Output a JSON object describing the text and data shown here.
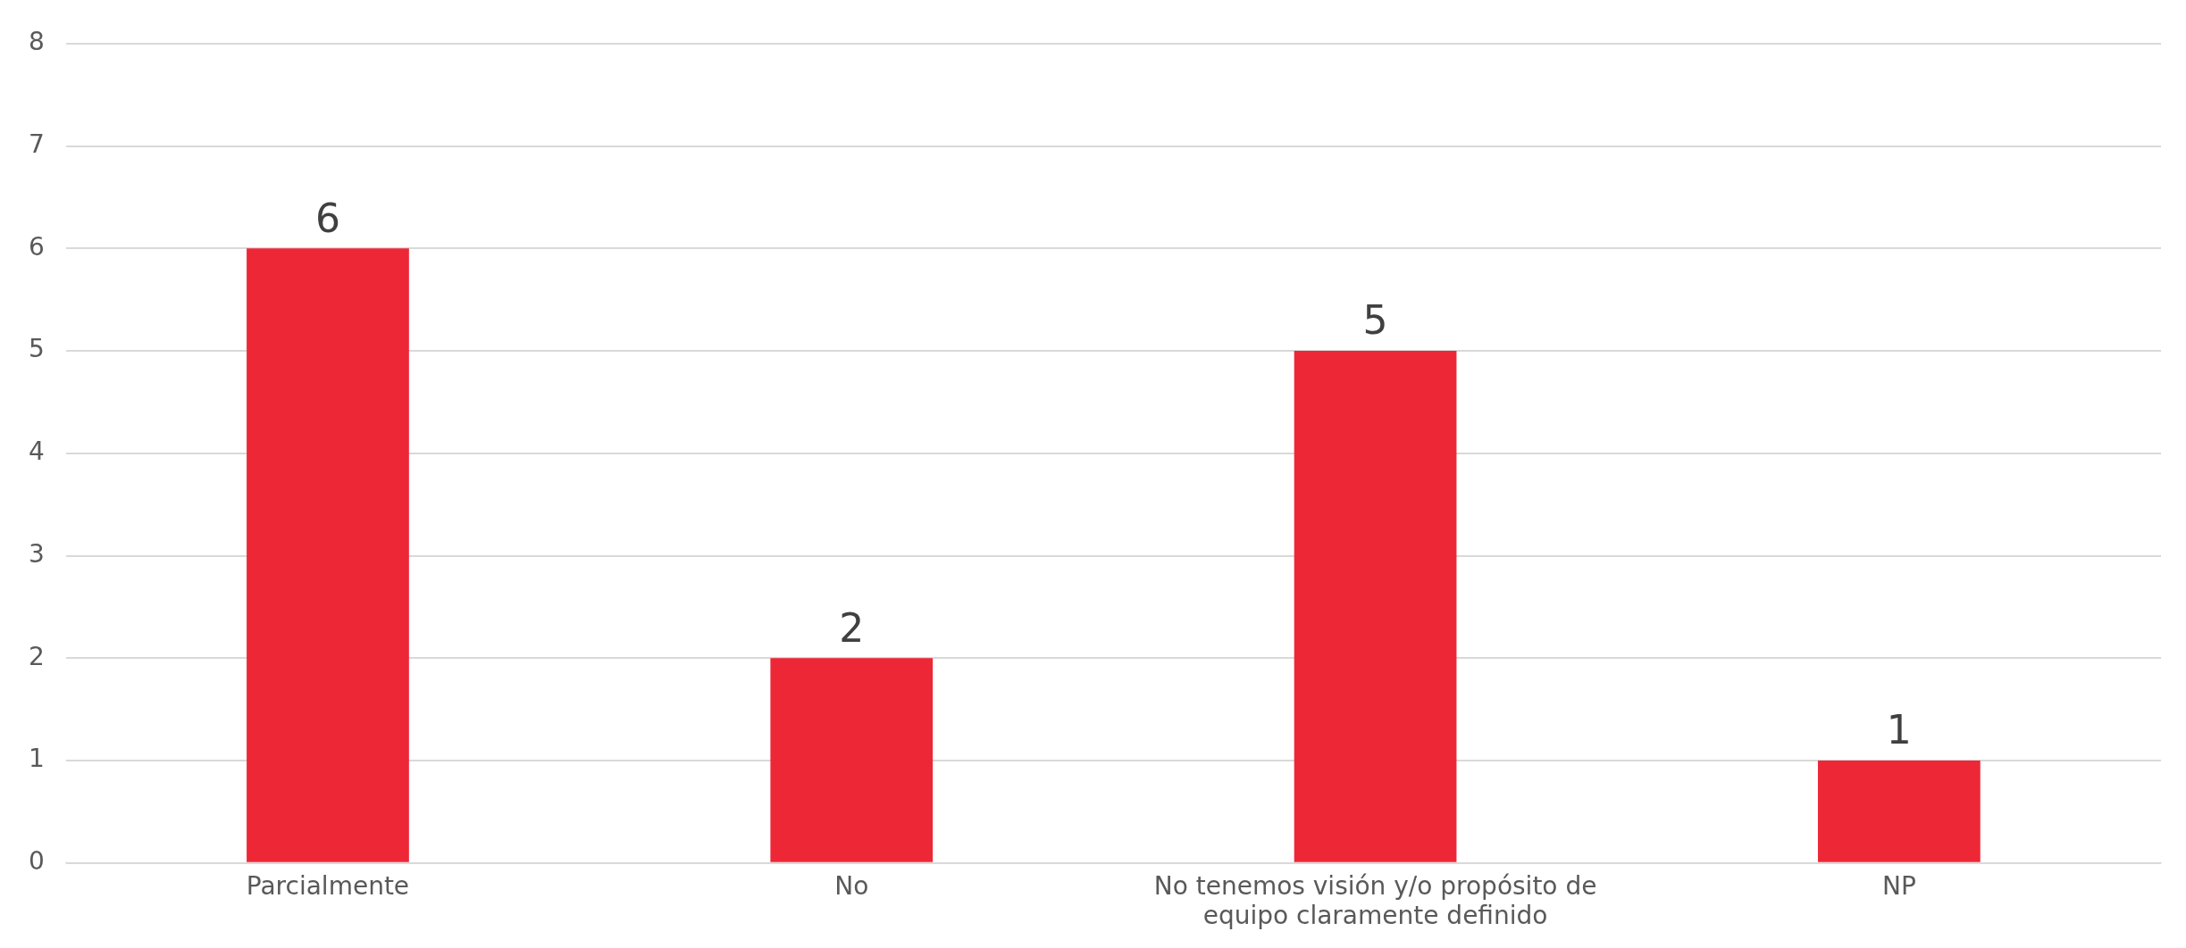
{
  "chart_data": {
    "type": "bar",
    "categories": [
      "Parcialmente",
      "No",
      "No tenemos visión y/o propósito de equipo claramente definido",
      "NP"
    ],
    "values": [
      6,
      2,
      5,
      1
    ],
    "color": "#ee2737",
    "ylim": [
      0,
      8
    ],
    "yticks": [
      0,
      1,
      2,
      3,
      4,
      5,
      6,
      7,
      8
    ],
    "grid": "y",
    "data_labels": true,
    "legend": false
  }
}
